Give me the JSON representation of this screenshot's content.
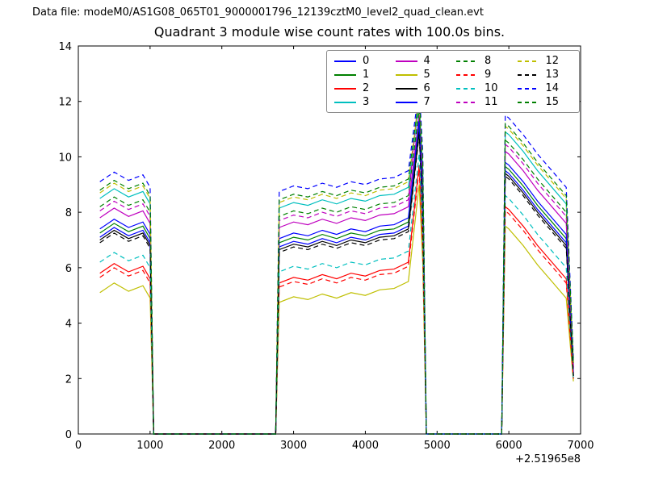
{
  "header": {
    "data_file_label": "Data file: modeM0/AS1G08_065T01_9000001796_12139cztM0_level2_quad_clean.evt"
  },
  "chart_data": {
    "type": "line",
    "title": "Quadrant 3 module wise count rates with 100.0s bins.",
    "xlabel": "",
    "ylabel": "",
    "xlim": [
      0,
      7000
    ],
    "ylim": [
      0,
      14
    ],
    "xticks": [
      0,
      1000,
      2000,
      3000,
      4000,
      5000,
      6000,
      7000
    ],
    "yticks": [
      0,
      2,
      4,
      6,
      8,
      10,
      12,
      14
    ],
    "x_axis_offset": "+2.51965e8",
    "grid": false,
    "legend_position": "upper center",
    "x": [
      300,
      500,
      700,
      900,
      1000,
      1050,
      2750,
      2800,
      3000,
      3200,
      3400,
      3600,
      3800,
      4000,
      4200,
      4400,
      4600,
      4750,
      4800,
      4850,
      5900,
      5950,
      6000,
      6200,
      6400,
      6600,
      6800,
      6900
    ],
    "series": [
      {
        "name": "0",
        "color": "#0000ff",
        "dash": false,
        "values": [
          7.1,
          7.45,
          7.15,
          7.35,
          6.9,
          0,
          0,
          6.75,
          6.95,
          6.85,
          7.05,
          6.9,
          7.1,
          7.0,
          7.2,
          7.25,
          7.5,
          11.0,
          8.2,
          0,
          0,
          9.5,
          9.4,
          8.8,
          8.1,
          7.5,
          6.9,
          2.1
        ]
      },
      {
        "name": "1",
        "color": "#008000",
        "dash": false,
        "values": [
          7.25,
          7.6,
          7.3,
          7.5,
          7.05,
          0,
          0,
          6.9,
          7.1,
          7.0,
          7.2,
          7.05,
          7.25,
          7.15,
          7.35,
          7.4,
          7.65,
          11.15,
          8.35,
          0,
          0,
          9.65,
          9.55,
          8.95,
          8.25,
          7.65,
          7.05,
          2.2
        ]
      },
      {
        "name": "2",
        "color": "#ff0000",
        "dash": false,
        "values": [
          5.8,
          6.15,
          5.85,
          6.05,
          5.6,
          0,
          0,
          5.45,
          5.65,
          5.55,
          5.75,
          5.6,
          5.8,
          5.7,
          5.9,
          5.95,
          6.2,
          9.7,
          6.9,
          0,
          0,
          8.2,
          8.1,
          7.5,
          6.8,
          6.2,
          5.6,
          2.0
        ]
      },
      {
        "name": "3",
        "color": "#00bfbf",
        "dash": false,
        "values": [
          8.5,
          8.85,
          8.55,
          8.75,
          8.3,
          0,
          0,
          8.15,
          8.35,
          8.25,
          8.45,
          8.3,
          8.5,
          8.4,
          8.6,
          8.65,
          8.9,
          11.95,
          9.6,
          0,
          0,
          10.9,
          10.8,
          10.2,
          9.5,
          8.9,
          8.3,
          2.6
        ]
      },
      {
        "name": "4",
        "color": "#bf00bf",
        "dash": false,
        "values": [
          7.8,
          8.15,
          7.85,
          8.05,
          7.6,
          0,
          0,
          7.45,
          7.65,
          7.55,
          7.75,
          7.6,
          7.8,
          7.7,
          7.9,
          7.95,
          8.2,
          11.5,
          8.9,
          0,
          0,
          10.2,
          10.1,
          9.5,
          8.8,
          8.2,
          7.6,
          2.4
        ]
      },
      {
        "name": "5",
        "color": "#bfbf00",
        "dash": false,
        "values": [
          5.1,
          5.45,
          5.15,
          5.35,
          4.9,
          0,
          0,
          4.75,
          4.95,
          4.85,
          5.05,
          4.9,
          5.1,
          5.0,
          5.2,
          5.25,
          5.5,
          9.0,
          6.2,
          0,
          0,
          7.5,
          7.4,
          6.8,
          6.1,
          5.5,
          4.9,
          1.9
        ]
      },
      {
        "name": "6",
        "color": "#000000",
        "dash": false,
        "values": [
          7.0,
          7.35,
          7.05,
          7.25,
          6.8,
          0,
          0,
          6.65,
          6.85,
          6.75,
          6.95,
          6.8,
          7.0,
          6.9,
          7.1,
          7.15,
          7.4,
          10.9,
          8.1,
          0,
          0,
          9.4,
          9.3,
          8.7,
          8.0,
          7.4,
          6.8,
          2.1
        ]
      },
      {
        "name": "7",
        "color": "#0000ff",
        "dash": false,
        "values": [
          7.4,
          7.75,
          7.45,
          7.65,
          7.2,
          0,
          0,
          7.05,
          7.25,
          7.15,
          7.35,
          7.2,
          7.4,
          7.3,
          7.5,
          7.55,
          7.8,
          11.3,
          8.5,
          0,
          0,
          9.8,
          9.7,
          9.1,
          8.4,
          7.8,
          7.2,
          2.2
        ]
      },
      {
        "name": "8",
        "color": "#008000",
        "dash": true,
        "values": [
          8.2,
          8.55,
          8.25,
          8.45,
          8.0,
          0,
          0,
          7.85,
          8.05,
          7.95,
          8.15,
          8.0,
          8.2,
          8.1,
          8.3,
          8.35,
          8.6,
          11.7,
          9.3,
          0,
          0,
          10.6,
          10.5,
          9.9,
          9.2,
          8.6,
          8.0,
          2.5
        ]
      },
      {
        "name": "9",
        "color": "#ff0000",
        "dash": true,
        "values": [
          5.65,
          6.0,
          5.7,
          5.9,
          5.45,
          0,
          0,
          5.3,
          5.5,
          5.4,
          5.6,
          5.45,
          5.65,
          5.55,
          5.75,
          5.8,
          6.05,
          9.55,
          6.75,
          0,
          0,
          8.05,
          7.95,
          7.35,
          6.65,
          6.05,
          5.45,
          2.0
        ]
      },
      {
        "name": "10",
        "color": "#00bfbf",
        "dash": true,
        "values": [
          6.2,
          6.55,
          6.25,
          6.45,
          6.0,
          0,
          0,
          5.85,
          6.05,
          5.95,
          6.15,
          6.0,
          6.2,
          6.1,
          6.3,
          6.35,
          6.6,
          10.1,
          7.3,
          0,
          0,
          8.6,
          8.5,
          7.9,
          7.2,
          6.6,
          6.0,
          2.0
        ]
      },
      {
        "name": "11",
        "color": "#bf00bf",
        "dash": true,
        "values": [
          8.05,
          8.4,
          8.1,
          8.3,
          7.85,
          0,
          0,
          7.7,
          7.9,
          7.8,
          8.0,
          7.85,
          8.05,
          7.95,
          8.15,
          8.2,
          8.45,
          12.45,
          9.15,
          0,
          0,
          10.45,
          10.35,
          9.75,
          9.05,
          8.45,
          7.85,
          2.4
        ]
      },
      {
        "name": "12",
        "color": "#bfbf00",
        "dash": true,
        "values": [
          8.7,
          9.05,
          8.75,
          8.95,
          8.5,
          0,
          0,
          8.35,
          8.55,
          8.45,
          8.65,
          8.5,
          8.7,
          8.6,
          8.8,
          8.85,
          9.1,
          12.1,
          9.8,
          0,
          0,
          11.1,
          11.0,
          10.4,
          9.7,
          9.1,
          8.5,
          2.6
        ]
      },
      {
        "name": "13",
        "color": "#000000",
        "dash": true,
        "values": [
          6.9,
          7.25,
          6.95,
          7.15,
          6.7,
          0,
          0,
          6.55,
          6.75,
          6.65,
          6.85,
          6.7,
          6.9,
          6.8,
          7.0,
          7.05,
          7.3,
          10.8,
          8.0,
          0,
          0,
          9.3,
          9.2,
          8.6,
          7.9,
          7.3,
          6.7,
          2.1
        ]
      },
      {
        "name": "14",
        "color": "#0000ff",
        "dash": true,
        "values": [
          9.1,
          9.45,
          9.15,
          9.35,
          8.9,
          0,
          0,
          8.75,
          8.95,
          8.85,
          9.05,
          8.9,
          9.1,
          9.0,
          9.2,
          9.25,
          9.5,
          12.5,
          10.2,
          0,
          0,
          11.5,
          11.4,
          10.8,
          10.1,
          9.5,
          8.9,
          2.7
        ]
      },
      {
        "name": "15",
        "color": "#008000",
        "dash": true,
        "values": [
          8.8,
          9.15,
          8.85,
          9.05,
          8.6,
          0,
          0,
          8.45,
          8.65,
          8.55,
          8.75,
          8.6,
          8.8,
          8.7,
          8.9,
          8.95,
          9.2,
          12.2,
          9.9,
          0,
          0,
          11.2,
          11.1,
          10.5,
          9.8,
          9.2,
          8.6,
          2.6
        ]
      }
    ]
  }
}
